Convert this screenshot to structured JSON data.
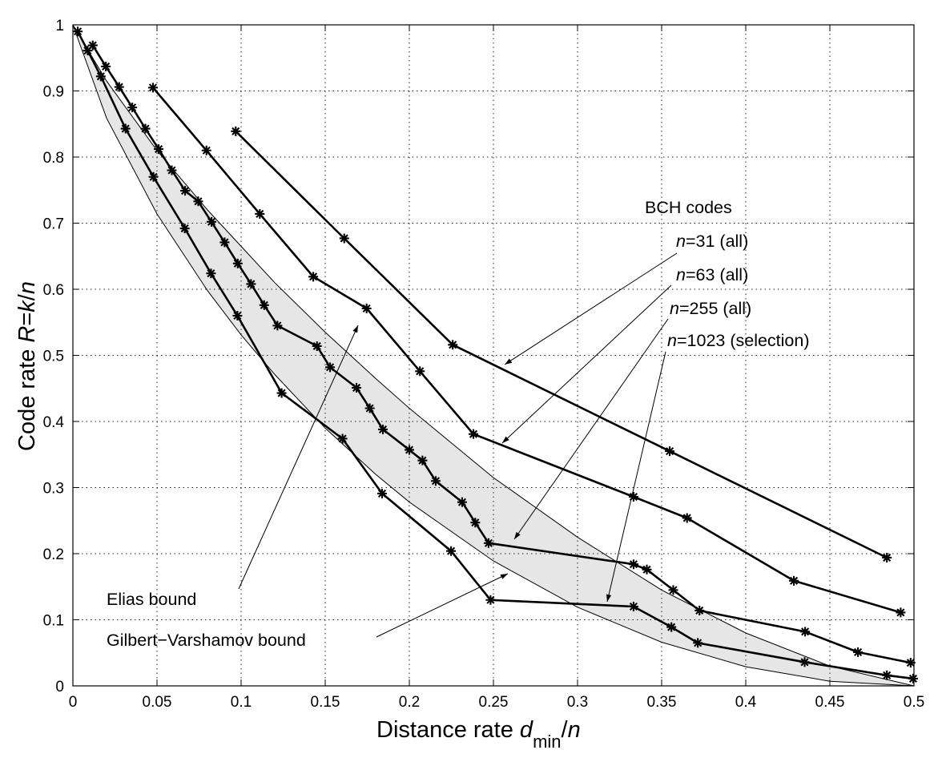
{
  "chart_data": {
    "type": "line",
    "xlabel_parts": [
      "Distance rate ",
      "d",
      "min",
      "/",
      "n"
    ],
    "ylabel_parts": [
      "Code rate ",
      "R",
      "=",
      "k",
      "/",
      "n"
    ],
    "xlim": [
      0,
      0.5
    ],
    "ylim": [
      0,
      1
    ],
    "x_ticks": [
      0,
      0.05,
      0.1,
      0.15,
      0.2,
      0.25,
      0.3,
      0.35,
      0.4,
      0.45,
      0.5
    ],
    "x_tick_labels": [
      "0",
      "0.05",
      "0.1",
      "0.15",
      "0.2",
      "0.25",
      "0.3",
      "0.35",
      "0.4",
      "0.45",
      "0.5"
    ],
    "y_ticks": [
      0,
      0.1,
      0.2,
      0.3,
      0.4,
      0.5,
      0.6,
      0.7,
      0.8,
      0.9,
      1
    ],
    "y_tick_labels": [
      "0",
      "0.1",
      "0.2",
      "0.3",
      "0.4",
      "0.5",
      "0.6",
      "0.7",
      "0.8",
      "0.9",
      "1"
    ],
    "grid": true,
    "shaded_region": "between Gilbert-Varshamov bound (lower) and Elias bound (upper)",
    "bounds": [
      {
        "name": "Elias bound",
        "x": [
          0,
          0.02,
          0.05,
          0.08,
          0.1,
          0.12,
          0.15,
          0.18,
          0.2,
          0.25,
          0.3,
          0.35,
          0.4,
          0.45,
          0.5
        ],
        "y": [
          1,
          0.915,
          0.81,
          0.72,
          0.665,
          0.61,
          0.535,
          0.465,
          0.42,
          0.315,
          0.225,
          0.145,
          0.08,
          0.03,
          0
        ]
      },
      {
        "name": "Gilbert−Varshamov bound",
        "x": [
          0,
          0.02,
          0.05,
          0.08,
          0.1,
          0.12,
          0.15,
          0.18,
          0.2,
          0.25,
          0.3,
          0.35,
          0.4,
          0.45,
          0.5
        ],
        "y": [
          1,
          0.859,
          0.714,
          0.598,
          0.531,
          0.471,
          0.39,
          0.32,
          0.278,
          0.189,
          0.119,
          0.066,
          0.029,
          0.007,
          0
        ]
      }
    ],
    "series": [
      {
        "name_parts": [
          "n",
          "=31 (all)"
        ],
        "x": [
          0.0968,
          0.1613,
          0.2258,
          0.3548,
          0.4839
        ],
        "y": [
          0.839,
          0.677,
          0.516,
          0.355,
          0.194
        ]
      },
      {
        "name_parts": [
          "n",
          "=63 (all)"
        ],
        "x": [
          0.0476,
          0.0794,
          0.1111,
          0.1429,
          0.1746,
          0.2063,
          0.2381,
          0.3333,
          0.3651,
          0.4286,
          0.4921
        ],
        "y": [
          0.905,
          0.81,
          0.714,
          0.619,
          0.571,
          0.476,
          0.381,
          0.286,
          0.254,
          0.159,
          0.111
        ]
      },
      {
        "name_parts": [
          "n",
          "=255 (all)"
        ],
        "x": [
          0.0118,
          0.0196,
          0.0275,
          0.0353,
          0.0431,
          0.051,
          0.0588,
          0.0667,
          0.0745,
          0.0824,
          0.0902,
          0.098,
          0.1059,
          0.1137,
          0.1216,
          0.1451,
          0.1529,
          0.1686,
          0.1765,
          0.1843,
          0.2,
          0.2078,
          0.2157,
          0.2314,
          0.2392,
          0.2471,
          0.3333,
          0.3412,
          0.3569,
          0.3725,
          0.4353,
          0.4667,
          0.498
        ],
        "y": [
          0.969,
          0.937,
          0.906,
          0.875,
          0.843,
          0.812,
          0.78,
          0.749,
          0.733,
          0.702,
          0.671,
          0.639,
          0.608,
          0.576,
          0.545,
          0.514,
          0.482,
          0.451,
          0.42,
          0.388,
          0.357,
          0.341,
          0.31,
          0.278,
          0.247,
          0.216,
          0.184,
          0.176,
          0.145,
          0.114,
          0.082,
          0.051,
          0.035
        ]
      },
      {
        "name_parts": [
          "n",
          "=1023 (selection)"
        ],
        "x": [
          0.0029,
          0.0088,
          0.0166,
          0.0313,
          0.0479,
          0.0665,
          0.0821,
          0.0978,
          0.1241,
          0.1603,
          0.1838,
          0.2248,
          0.2483,
          0.3333,
          0.3558,
          0.3715,
          0.435,
          0.4839,
          0.4995
        ],
        "y": [
          0.99,
          0.961,
          0.922,
          0.843,
          0.77,
          0.692,
          0.624,
          0.56,
          0.443,
          0.374,
          0.291,
          0.204,
          0.13,
          0.12,
          0.089,
          0.065,
          0.036,
          0.016,
          0.011
        ]
      }
    ],
    "annotations": [
      {
        "id": "bch",
        "text_parts": [
          "BCH codes"
        ]
      },
      {
        "id": "n31",
        "text_parts": [
          "n",
          "=31 (all)"
        ]
      },
      {
        "id": "n63",
        "text_parts": [
          "n",
          "=63 (all)"
        ]
      },
      {
        "id": "n255",
        "text_parts": [
          "n",
          "=255 (all)"
        ]
      },
      {
        "id": "n1023",
        "text_parts": [
          "n",
          "=1023 (selection)"
        ]
      },
      {
        "id": "elias",
        "text_parts": [
          "Elias bound"
        ]
      },
      {
        "id": "gv",
        "text_parts": [
          "Gilbert−Varshamov bound"
        ]
      }
    ]
  }
}
